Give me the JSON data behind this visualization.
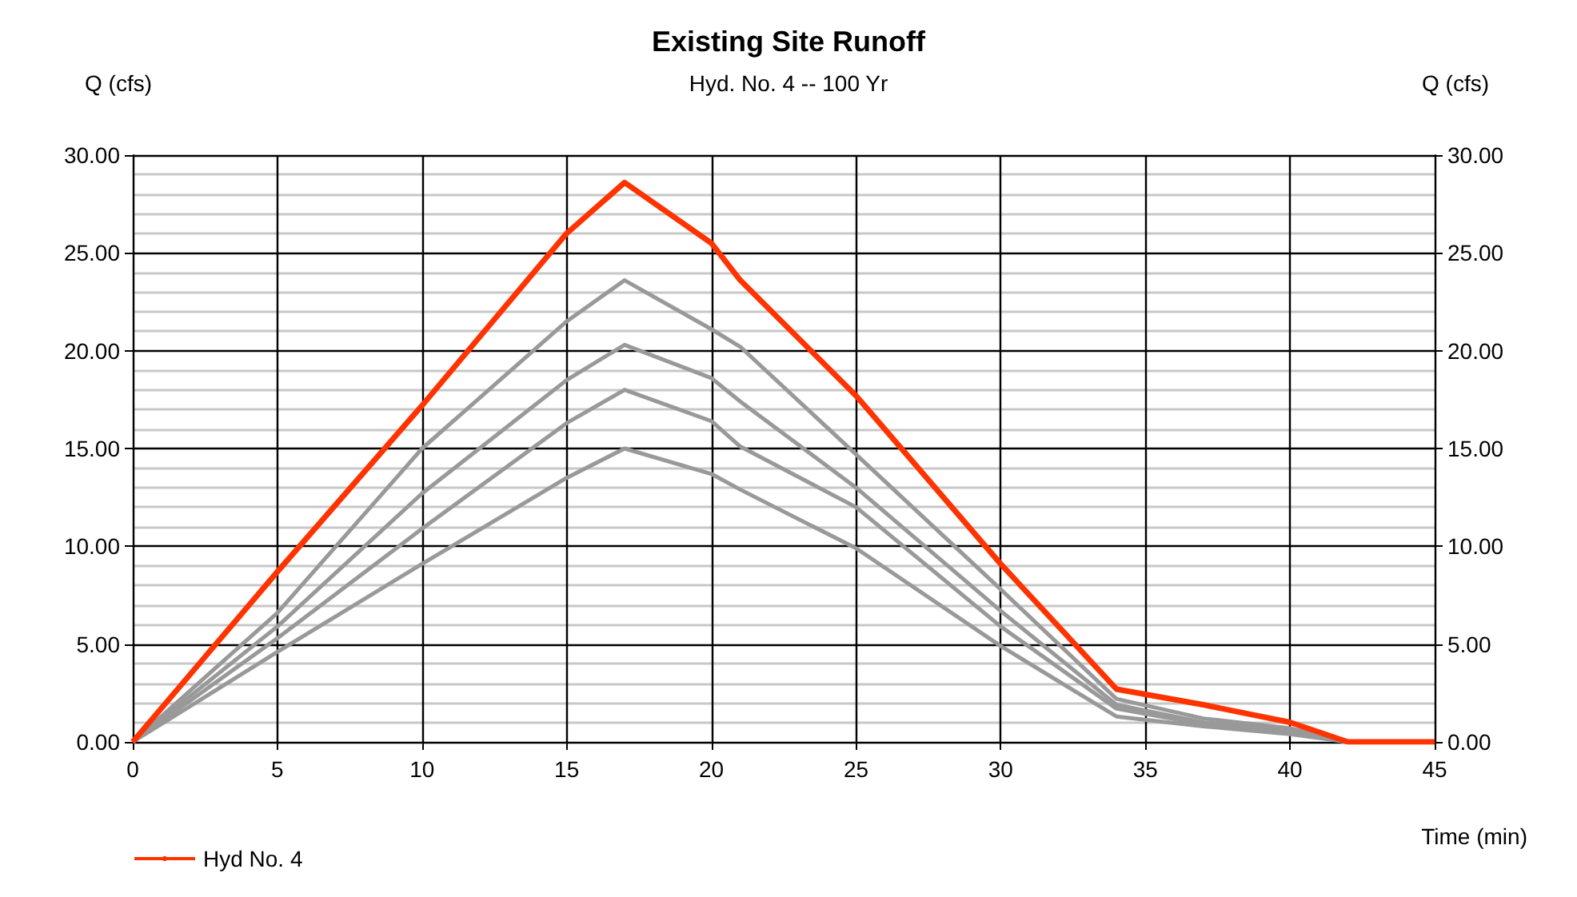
{
  "chart_data": {
    "type": "line",
    "title": "Existing Site Runoff",
    "subtitle": "Hyd. No. 4 -- 100 Yr",
    "xlabel": "Time (min)",
    "ylabel": "Q (cfs)",
    "y2label": "Q (cfs)",
    "x": [
      0,
      5,
      10,
      15,
      17,
      20,
      21,
      25,
      30,
      34,
      37,
      40,
      42,
      45
    ],
    "series": [
      {
        "color": "#999999",
        "values": [
          0,
          6.6,
          15.0,
          21.5,
          23.6,
          21.1,
          20.2,
          14.7,
          7.8,
          2.2,
          1.2,
          0.7,
          0,
          0
        ]
      },
      {
        "color": "#999999",
        "values": [
          0,
          5.9,
          12.7,
          18.5,
          20.3,
          18.6,
          17.4,
          13.0,
          6.7,
          1.9,
          1.0,
          0.6,
          0,
          0
        ]
      },
      {
        "color": "#999999",
        "values": [
          0,
          5.3,
          10.9,
          16.3,
          18.0,
          16.4,
          15.1,
          12.0,
          5.9,
          1.7,
          0.9,
          0.5,
          0,
          0
        ]
      },
      {
        "color": "#999999",
        "values": [
          0,
          4.6,
          9.1,
          13.5,
          15.0,
          13.7,
          12.9,
          9.9,
          4.9,
          1.3,
          0.8,
          0.4,
          0,
          0
        ]
      },
      {
        "name": "Hyd No. 4",
        "color": "#ff3300",
        "values": [
          0,
          8.7,
          17.2,
          26.0,
          28.6,
          25.5,
          23.6,
          17.7,
          9.1,
          2.7,
          1.9,
          1.0,
          0,
          0
        ]
      }
    ],
    "xlim": [
      0,
      45
    ],
    "xticks": [
      0,
      5,
      10,
      15,
      20,
      25,
      30,
      35,
      40,
      45
    ],
    "ylim": [
      0,
      30
    ],
    "yticks": [
      {
        "value": 0,
        "label": "0.00"
      },
      {
        "value": 5,
        "label": "5.00"
      },
      {
        "value": 10,
        "label": "10.00"
      },
      {
        "value": 15,
        "label": "15.00"
      },
      {
        "value": 20,
        "label": "20.00"
      },
      {
        "value": 25,
        "label": "25.00"
      },
      {
        "value": 30,
        "label": "30.00"
      }
    ],
    "y2lim": [
      0,
      30
    ],
    "y2ticks": [
      {
        "value": 0,
        "label": "0.00"
      },
      {
        "value": 5,
        "label": "5.00"
      },
      {
        "value": 10,
        "label": "10.00"
      },
      {
        "value": 15,
        "label": "15.00"
      },
      {
        "value": 20,
        "label": "20.00"
      },
      {
        "value": 25,
        "label": "25.00"
      },
      {
        "value": 30,
        "label": "30.00"
      }
    ],
    "grid": true,
    "legend": "bottom left",
    "marker": "none",
    "line_style": "solid"
  }
}
